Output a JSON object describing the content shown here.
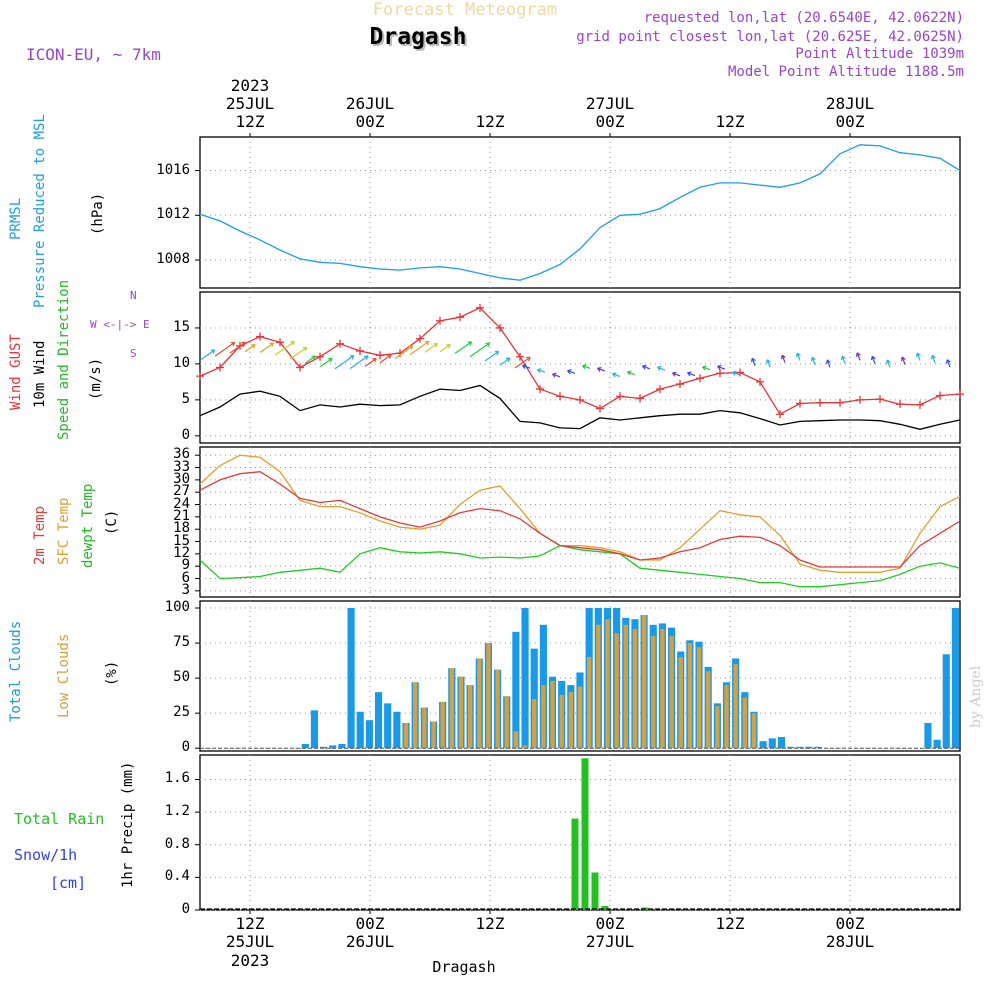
{
  "header": {
    "top_title": "Forecast Meteogram",
    "station": "Dragash",
    "model": "ICON-EU, ~ 7km",
    "requested": "requested lon,lat (20.6540E, 42.0622N)",
    "grid": "grid point closest lon,lat (20.625E, 42.0625N)",
    "point_alt": "Point Altitude 1039m",
    "model_alt": "Model Point Altitude 1188.5m",
    "watermark": "by Angel",
    "bottom_station": "Dragash"
  },
  "time_axis": {
    "top_year": "2023",
    "ticks": [
      {
        "hour": "12Z",
        "date": "25JUL",
        "year": "2023"
      },
      {
        "hour": "00Z",
        "date": "26JUL"
      },
      {
        "hour": "12Z",
        "date": ""
      },
      {
        "hour": "00Z",
        "date": "27JUL"
      },
      {
        "hour": "12Z",
        "date": ""
      },
      {
        "hour": "00Z",
        "date": "28JUL"
      }
    ]
  },
  "panel_labels": {
    "pressure": {
      "title1": "PRMSL",
      "title2": "Pressure Reduced to MSL",
      "unit": "(hPa)"
    },
    "wind": {
      "gust": "Wind GUST",
      "wind10": "10m Wind",
      "speed_dir": "Speed and Direction",
      "unit": "(m/s)",
      "compass_n": "N",
      "compass_s": "S",
      "compass_ew": "W <-|-> E"
    },
    "temp": {
      "t2m": "2m Temp",
      "sfc": "SFC Temp",
      "dewpt": "dewpt Temp",
      "unit": "(C)"
    },
    "clouds": {
      "total": "Total Clouds",
      "low": "Low Clouds",
      "unit": "(%)"
    },
    "precip": {
      "rain": "Total  Rain",
      "snow": "Snow/1h",
      "cm": "[cm]",
      "unit": "1hr Precip (mm)"
    }
  },
  "colors": {
    "pressure": "#1e9ee8",
    "gust": "#e8343a",
    "wind": "#000000",
    "t2m": "#e03c3c",
    "sfc": "#e0a030",
    "dewpt": "#22cc22",
    "total_clouds": "#1a9ae6",
    "low_clouds": "#d4a040",
    "rain": "#22c022",
    "snow": "#3344dd",
    "meta": "#9a44cc",
    "title_top": "#f0d8a0"
  },
  "chart_data": {
    "type": "line",
    "x_unit": "hours from 2023-07-25 07Z",
    "x_range": [
      0,
      76
    ],
    "pressure": {
      "ylim": [
        1005.5,
        1019
      ],
      "yticks": [
        "1008",
        "1012",
        "1016"
      ],
      "x": [
        0,
        2,
        4,
        6,
        8,
        10,
        12,
        14,
        16,
        18,
        20,
        22,
        24,
        26,
        28,
        30,
        32,
        34,
        36,
        38,
        40,
        42,
        44,
        46,
        48,
        50,
        52,
        54,
        56,
        58,
        60,
        62,
        64,
        66,
        68,
        70,
        72,
        74,
        76
      ],
      "values": [
        1012.1,
        1011.5,
        1010.6,
        1009.8,
        1008.9,
        1008.1,
        1007.8,
        1007.7,
        1007.4,
        1007.2,
        1007.1,
        1007.3,
        1007.4,
        1007.2,
        1006.8,
        1006.4,
        1006.2,
        1006.8,
        1007.6,
        1009.0,
        1010.9,
        1012.0,
        1012.1,
        1012.6,
        1013.6,
        1014.5,
        1014.9,
        1014.9,
        1014.7,
        1014.5,
        1014.9,
        1015.7,
        1017.5,
        1018.3,
        1018.2,
        1017.6,
        1017.4,
        1017.1,
        1016.0
      ]
    },
    "wind": {
      "ylim": [
        -1,
        20
      ],
      "yticks": [
        "0",
        "5",
        "10",
        "15"
      ],
      "x": [
        0,
        2,
        4,
        6,
        8,
        10,
        12,
        14,
        16,
        18,
        20,
        22,
        24,
        26,
        28,
        30,
        32,
        34,
        36,
        38,
        40,
        42,
        44,
        46,
        48,
        50,
        52,
        54,
        56,
        58,
        60,
        62,
        64,
        66,
        68,
        70,
        72,
        74,
        76
      ],
      "gust": [
        8.3,
        9.5,
        12.5,
        13.8,
        13.0,
        9.5,
        11.0,
        12.8,
        11.8,
        11.2,
        11.5,
        13.5,
        16.0,
        16.5,
        17.8,
        15.0,
        11.0,
        6.5,
        5.5,
        5.0,
        3.8,
        5.5,
        5.2,
        6.5,
        7.2,
        8.0,
        8.7,
        8.8,
        7.5,
        3.0,
        4.5,
        4.6,
        4.6,
        5.0,
        5.1,
        4.4,
        4.3,
        5.6,
        5.8
      ],
      "wind10": [
        2.8,
        4.0,
        5.8,
        6.2,
        5.5,
        3.5,
        4.3,
        4.0,
        4.4,
        4.2,
        4.3,
        5.5,
        6.5,
        6.3,
        7.0,
        5.2,
        2.0,
        1.8,
        1.1,
        1.0,
        2.5,
        2.2,
        2.5,
        2.8,
        3.0,
        3.0,
        3.5,
        3.2,
        2.4,
        1.5,
        2.0,
        2.1,
        2.2,
        2.2,
        2.1,
        1.6,
        0.9,
        1.6,
        2.2
      ],
      "arrow_x": [
        0,
        1.5,
        3,
        4.5,
        6,
        7.5,
        9,
        10.5,
        12,
        13.5,
        15,
        16.5,
        18,
        19.5,
        21,
        22.5,
        24,
        25.5,
        27,
        28.5,
        30,
        31.5,
        33,
        34.5,
        36,
        37.5,
        39,
        40.5,
        42,
        43.5,
        45,
        46.5,
        48,
        49.5,
        51,
        52.5,
        54,
        55.5,
        57,
        58.5,
        60,
        61.5,
        63,
        64.5,
        66,
        67.5,
        69,
        70.5,
        72,
        73.5,
        75
      ]
    },
    "temperature": {
      "ylim": [
        1.5,
        38
      ],
      "yticks": [
        "3",
        "6",
        "9",
        "12",
        "15",
        "18",
        "21",
        "24",
        "27",
        "30",
        "33",
        "36"
      ],
      "x": [
        0,
        2,
        4,
        6,
        8,
        10,
        12,
        14,
        16,
        18,
        20,
        22,
        24,
        26,
        28,
        30,
        32,
        34,
        36,
        38,
        40,
        42,
        44,
        46,
        48,
        50,
        52,
        54,
        56,
        58,
        60,
        62,
        64,
        66,
        68,
        70,
        72,
        74,
        76
      ],
      "t2m": [
        27.5,
        30.0,
        31.5,
        32.0,
        29.0,
        25.5,
        24.5,
        25.0,
        23.0,
        21.0,
        19.5,
        18.5,
        20.0,
        22.0,
        23.0,
        22.5,
        20.5,
        17.0,
        14.0,
        13.5,
        13.0,
        12.0,
        10.5,
        11.0,
        12.5,
        13.5,
        15.5,
        16.3,
        16.0,
        14.0,
        10.5,
        8.8,
        8.8,
        8.8,
        8.8,
        8.8,
        14.0,
        17.0,
        20.0
      ],
      "sfc": [
        29.0,
        33.5,
        36.0,
        35.5,
        32.0,
        25.0,
        23.5,
        23.5,
        22.0,
        20.0,
        18.5,
        18.0,
        19.0,
        24.0,
        27.5,
        28.5,
        23.0,
        17.0,
        14.0,
        14.0,
        13.5,
        12.5,
        10.5,
        10.5,
        13.5,
        18.0,
        22.5,
        21.5,
        21.0,
        16.5,
        9.5,
        8.0,
        7.5,
        7.5,
        7.5,
        8.5,
        17.0,
        23.5,
        26.0
      ],
      "dewpt": [
        10.5,
        6.0,
        6.2,
        6.5,
        7.5,
        8.0,
        8.5,
        7.5,
        12.0,
        13.5,
        12.5,
        12.2,
        12.5,
        12.0,
        11.0,
        11.2,
        11.0,
        11.5,
        14.0,
        13.0,
        12.5,
        12.0,
        8.5,
        8.0,
        7.5,
        7.0,
        6.5,
        6.0,
        5.0,
        5.0,
        4.0,
        4.0,
        4.5,
        5.0,
        5.5,
        7.0,
        9.0,
        9.8,
        8.5
      ]
    },
    "clouds": {
      "ylim": [
        -2,
        105
      ],
      "yticks": [
        "0",
        "25",
        "50",
        "75",
        "100"
      ],
      "total": [
        0,
        0,
        0,
        0,
        0,
        0,
        0,
        0,
        0,
        0,
        0,
        3,
        27,
        1,
        2,
        3,
        100,
        26,
        20,
        40,
        32,
        26,
        18,
        47,
        29,
        19,
        33,
        57,
        51,
        45,
        64,
        75,
        56,
        37,
        83,
        100,
        71,
        88,
        51,
        48,
        45,
        54,
        100,
        100,
        100,
        100,
        93,
        92,
        95,
        88,
        89,
        86,
        69,
        77,
        76,
        58,
        32,
        47,
        64,
        40,
        26,
        5,
        7,
        8,
        1,
        1,
        1,
        1,
        0,
        0,
        0,
        0,
        0,
        0,
        0,
        0,
        0,
        0,
        0,
        18,
        6,
        67,
        100
      ],
      "low": [
        0,
        0,
        0,
        0,
        0,
        0,
        0,
        0,
        0,
        0,
        0,
        0,
        0,
        0,
        0,
        0,
        0,
        0,
        0,
        0,
        0,
        0,
        18,
        47,
        29,
        19,
        33,
        57,
        51,
        45,
        64,
        75,
        56,
        37,
        12,
        2,
        35,
        45,
        48,
        38,
        40,
        44,
        65,
        88,
        92,
        82,
        88,
        85,
        95,
        80,
        85,
        80,
        65,
        75,
        72,
        55,
        30,
        45,
        60,
        36,
        25,
        0,
        0,
        0,
        0,
        0,
        0,
        0,
        0,
        0,
        0,
        0,
        0,
        0,
        0,
        0,
        0,
        0,
        0,
        0,
        0,
        0,
        0
      ]
    },
    "precip": {
      "ylim": [
        0,
        1.9
      ],
      "yticks": [
        "0",
        "0.4",
        "0.8",
        "1.2",
        "1.6"
      ],
      "bars": [
        {
          "x": 37.5,
          "value": 1.12
        },
        {
          "x": 38.5,
          "value": 1.86
        },
        {
          "x": 39.5,
          "value": 0.46
        },
        {
          "x": 40.5,
          "value": 0.05
        },
        {
          "x": 44.5,
          "value": 0.03
        }
      ]
    }
  }
}
